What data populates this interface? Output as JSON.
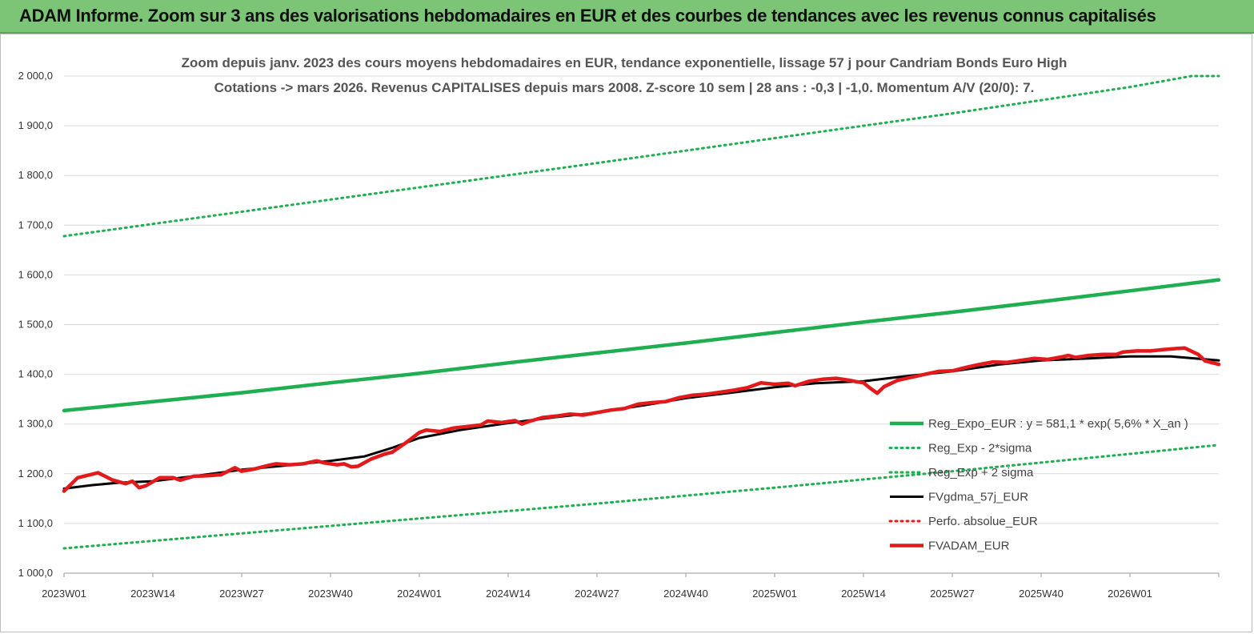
{
  "header": {
    "title": "ADAM Informe. Zoom sur 3 ans des valorisations hebdomadaires en EUR et des courbes de tendances avec les revenus connus capitalisés"
  },
  "chart_data": {
    "type": "line",
    "title_line1": "Zoom depuis janv. 2023 des cours moyens hebdomadaires en EUR, tendance exponentielle, lissage 57 j pour Candriam Bonds Euro High",
    "title_line2": "Cotations -> mars 2026. Revenus CAPITALISES depuis mars 2008. Z-score 10 sem | 28 ans : -0,3 | -1,0. Momentum A/V (20/0): 7.",
    "xlabel": "",
    "ylabel": "",
    "ylim": [
      1000,
      2000
    ],
    "yticks": [
      "2 000,0",
      "1 900,0",
      "1 800,0",
      "1 700,0",
      "1 600,0",
      "1 500,0",
      "1 400,0",
      "1 300,0",
      "1 200,0",
      "1 100,0",
      "1 000,0"
    ],
    "ytick_values": [
      2000,
      1900,
      1800,
      1700,
      1600,
      1500,
      1400,
      1300,
      1200,
      1100,
      1000
    ],
    "xticks": [
      "2023W01",
      "2023W14",
      "2023W27",
      "2023W40",
      "2024W01",
      "2024W14",
      "2024W27",
      "2024W40",
      "2025W01",
      "2025W14",
      "2025W27",
      "2025W40",
      "2026W01"
    ],
    "xtick_weeks": [
      0,
      13,
      26,
      39,
      52,
      65,
      78,
      91,
      104,
      117,
      130,
      143,
      156
    ],
    "x_max_week": 169,
    "grid": "horizontal",
    "legend_position": "bottom-right",
    "series": [
      {
        "name": "Reg_Expo_EUR : y = 581,1 * exp( 5,6% *  X_an )",
        "color": "#1fae50",
        "style": "solid-thick",
        "points": [
          [
            0,
            1327
          ],
          [
            13,
            1345
          ],
          [
            26,
            1363
          ],
          [
            39,
            1383
          ],
          [
            52,
            1402
          ],
          [
            65,
            1423
          ],
          [
            78,
            1443
          ],
          [
            91,
            1463
          ],
          [
            104,
            1484
          ],
          [
            117,
            1505
          ],
          [
            130,
            1525
          ],
          [
            143,
            1546
          ],
          [
            156,
            1568
          ],
          [
            169,
            1590
          ]
        ]
      },
      {
        "name": "Reg_Exp - 2*sigma",
        "color": "#1fae50",
        "style": "dotted",
        "points": [
          [
            0,
            1050
          ],
          [
            26,
            1080
          ],
          [
            52,
            1110
          ],
          [
            78,
            1140
          ],
          [
            104,
            1172
          ],
          [
            130,
            1205
          ],
          [
            156,
            1240
          ],
          [
            169,
            1258
          ]
        ]
      },
      {
        "name": "Reg_Exp + 2 sigma",
        "color": "#1fae50",
        "style": "dotted",
        "points": [
          [
            0,
            1678
          ],
          [
            26,
            1727
          ],
          [
            52,
            1776
          ],
          [
            78,
            1825
          ],
          [
            104,
            1875
          ],
          [
            130,
            1925
          ],
          [
            156,
            1978
          ],
          [
            165,
            2000
          ],
          [
            169,
            2000
          ]
        ]
      },
      {
        "name": "FVgdma_57j_EUR",
        "color": "#000000",
        "style": "solid",
        "points": [
          [
            0,
            1170
          ],
          [
            4,
            1177
          ],
          [
            8,
            1182
          ],
          [
            13,
            1185
          ],
          [
            19,
            1195
          ],
          [
            26,
            1208
          ],
          [
            32,
            1216
          ],
          [
            39,
            1226
          ],
          [
            44,
            1235
          ],
          [
            48,
            1252
          ],
          [
            52,
            1272
          ],
          [
            58,
            1288
          ],
          [
            65,
            1302
          ],
          [
            72,
            1314
          ],
          [
            78,
            1323
          ],
          [
            85,
            1338
          ],
          [
            91,
            1352
          ],
          [
            97,
            1362
          ],
          [
            104,
            1374
          ],
          [
            110,
            1382
          ],
          [
            117,
            1386
          ],
          [
            123,
            1396
          ],
          [
            130,
            1406
          ],
          [
            137,
            1420
          ],
          [
            143,
            1428
          ],
          [
            150,
            1432
          ],
          [
            156,
            1436
          ],
          [
            162,
            1436
          ],
          [
            169,
            1428
          ]
        ]
      },
      {
        "name": "Perfo. absolue_EUR",
        "color": "#e31a1c",
        "style": "dotted",
        "points": []
      },
      {
        "name": "FVADAM_EUR",
        "color": "#e31a1c",
        "style": "solid-thick",
        "points": [
          [
            0,
            1165
          ],
          [
            2,
            1192
          ],
          [
            5,
            1202
          ],
          [
            7,
            1188
          ],
          [
            9,
            1180
          ],
          [
            10,
            1185
          ],
          [
            11,
            1172
          ],
          [
            12,
            1176
          ],
          [
            14,
            1192
          ],
          [
            16,
            1192
          ],
          [
            17,
            1187
          ],
          [
            19,
            1195
          ],
          [
            21,
            1196
          ],
          [
            23,
            1198
          ],
          [
            25,
            1212
          ],
          [
            26,
            1205
          ],
          [
            28,
            1210
          ],
          [
            30,
            1217
          ],
          [
            31,
            1220
          ],
          [
            33,
            1218
          ],
          [
            35,
            1220
          ],
          [
            37,
            1226
          ],
          [
            38,
            1222
          ],
          [
            40,
            1218
          ],
          [
            41,
            1220
          ],
          [
            42,
            1214
          ],
          [
            43,
            1215
          ],
          [
            45,
            1230
          ],
          [
            47,
            1240
          ],
          [
            48,
            1243
          ],
          [
            50,
            1262
          ],
          [
            52,
            1283
          ],
          [
            53,
            1288
          ],
          [
            55,
            1285
          ],
          [
            57,
            1292
          ],
          [
            59,
            1295
          ],
          [
            61,
            1298
          ],
          [
            62,
            1306
          ],
          [
            64,
            1303
          ],
          [
            66,
            1307
          ],
          [
            67,
            1300
          ],
          [
            68,
            1305
          ],
          [
            70,
            1313
          ],
          [
            72,
            1316
          ],
          [
            74,
            1320
          ],
          [
            76,
            1318
          ],
          [
            78,
            1323
          ],
          [
            80,
            1328
          ],
          [
            82,
            1331
          ],
          [
            84,
            1340
          ],
          [
            86,
            1343
          ],
          [
            88,
            1345
          ],
          [
            90,
            1353
          ],
          [
            92,
            1358
          ],
          [
            94,
            1360
          ],
          [
            96,
            1364
          ],
          [
            98,
            1368
          ],
          [
            100,
            1373
          ],
          [
            102,
            1383
          ],
          [
            104,
            1380
          ],
          [
            106,
            1382
          ],
          [
            107,
            1377
          ],
          [
            109,
            1386
          ],
          [
            111,
            1390
          ],
          [
            113,
            1392
          ],
          [
            115,
            1388
          ],
          [
            116,
            1385
          ],
          [
            117,
            1383
          ],
          [
            118,
            1372
          ],
          [
            119,
            1362
          ],
          [
            120,
            1375
          ],
          [
            122,
            1388
          ],
          [
            124,
            1394
          ],
          [
            126,
            1400
          ],
          [
            128,
            1406
          ],
          [
            130,
            1407
          ],
          [
            132,
            1414
          ],
          [
            134,
            1420
          ],
          [
            136,
            1425
          ],
          [
            138,
            1424
          ],
          [
            140,
            1428
          ],
          [
            142,
            1432
          ],
          [
            144,
            1430
          ],
          [
            146,
            1435
          ],
          [
            147,
            1438
          ],
          [
            148,
            1434
          ],
          [
            150,
            1438
          ],
          [
            152,
            1440
          ],
          [
            154,
            1440
          ],
          [
            155,
            1445
          ],
          [
            157,
            1447
          ],
          [
            159,
            1447
          ],
          [
            161,
            1450
          ],
          [
            163,
            1452
          ],
          [
            164,
            1453
          ],
          [
            166,
            1440
          ],
          [
            167,
            1427
          ],
          [
            169,
            1420
          ]
        ]
      }
    ]
  }
}
